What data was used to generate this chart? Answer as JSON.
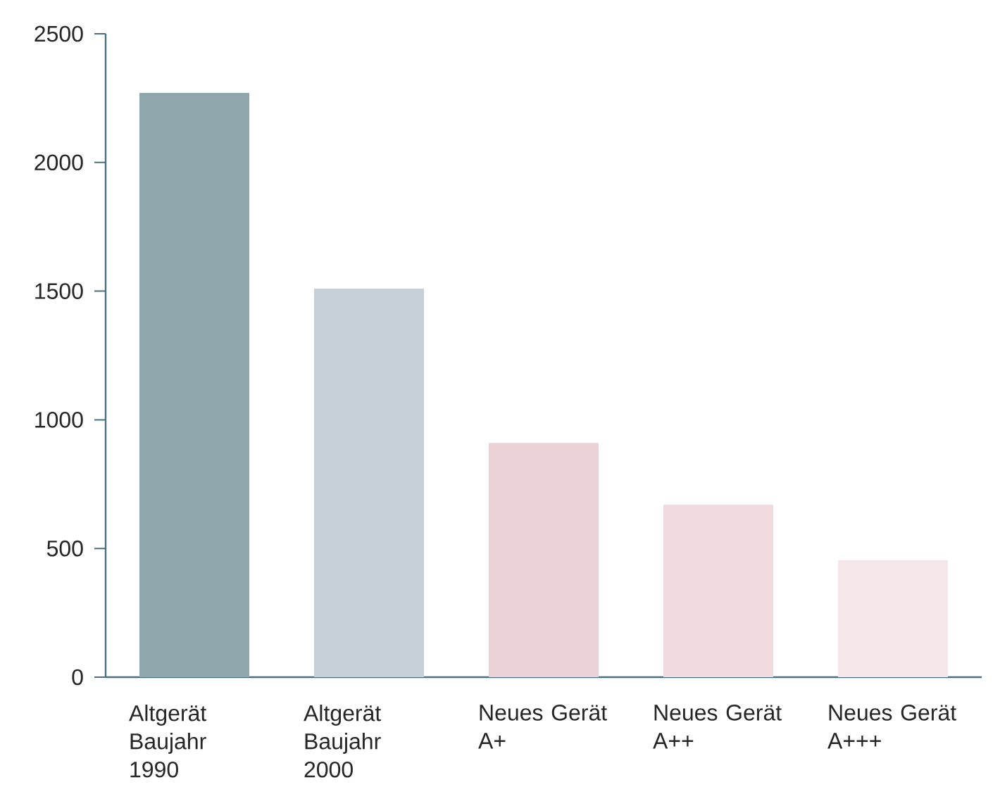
{
  "chart_data": {
    "type": "bar",
    "categories": [
      "Altgerät Baujahr 1990",
      "Altgerät Baujahr 2000",
      "Neues Gerät A+",
      "Neues Gerät A++",
      "Neues Gerät A+++"
    ],
    "values": [
      2270,
      1510,
      910,
      670,
      455
    ],
    "colors": [
      "#8fa6ad",
      "#c7cfd6",
      "#ecd2d6",
      "#f0dadd",
      "#f4e6e9"
    ],
    "ylim": [
      0,
      2500
    ],
    "yticks": [
      0,
      500,
      1000,
      1500,
      2000,
      2500
    ]
  }
}
